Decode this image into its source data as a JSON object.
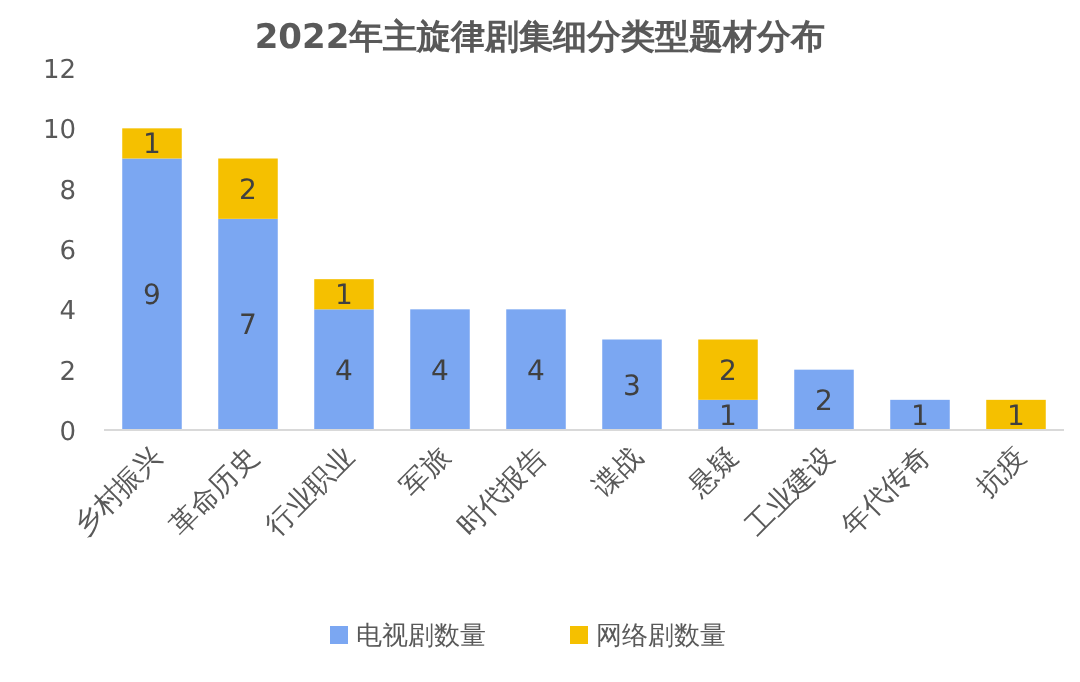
{
  "chart_data": {
    "type": "bar",
    "title": "2022年主旋律剧集细分类型题材分布",
    "stacked": true,
    "legend": "bottom",
    "categories": [
      "乡村振兴",
      "革命历史",
      "行业职业",
      "军旅",
      "时代报告",
      "谍战",
      "悬疑",
      "工业建设",
      "年代传奇",
      "抗疫"
    ],
    "ylim": [
      0,
      12
    ],
    "yticks": [
      0,
      2,
      4,
      6,
      8,
      10,
      12
    ],
    "series": [
      {
        "name": "电视剧数量",
        "color": "#7ba7f2",
        "values": [
          9,
          7,
          4,
          4,
          4,
          3,
          1,
          2,
          1,
          0
        ],
        "value_labels": [
          "9",
          "7",
          "4",
          "4",
          "4",
          "3",
          "1",
          "2",
          "1",
          null
        ]
      },
      {
        "name": "网络剧数量",
        "color": "#f5c000",
        "values": [
          1,
          2,
          1,
          0,
          0,
          0,
          2,
          0,
          0,
          1
        ],
        "value_labels": [
          "1",
          "2",
          "1",
          null,
          null,
          null,
          "2",
          null,
          null,
          "1"
        ]
      }
    ]
  }
}
